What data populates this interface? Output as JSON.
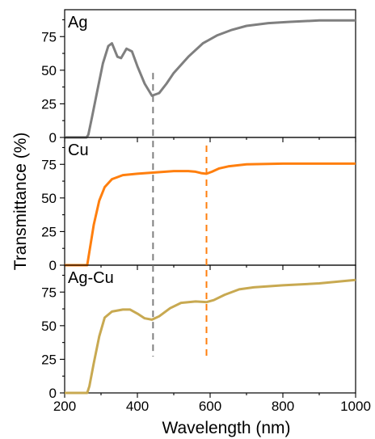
{
  "chart_data": {
    "type": "line",
    "xlabel": "Wavelength (nm)",
    "ylabel": "Transmittance (%)",
    "xlim": [
      200,
      1000
    ],
    "x_ticks": [
      "200",
      "400",
      "600",
      "800",
      "1000"
    ],
    "panels": [
      {
        "label": "Ag",
        "color": "#7f7f7f",
        "ylim": [
          0,
          95
        ],
        "y_ticks": [
          "0",
          "25",
          "50",
          "75"
        ],
        "x": [
          200,
          260,
          265,
          275,
          290,
          305,
          320,
          330,
          345,
          355,
          370,
          385,
          400,
          420,
          440,
          460,
          480,
          500,
          540,
          580,
          620,
          660,
          700,
          760,
          820,
          900,
          1000
        ],
        "y": [
          0,
          0,
          2,
          15,
          35,
          55,
          68,
          70,
          60,
          59,
          66,
          64,
          53,
          40,
          31,
          33,
          40,
          48,
          60,
          70,
          76,
          80,
          83,
          85,
          86,
          87,
          87
        ]
      },
      {
        "label": "Cu",
        "color": "#ff7f0e",
        "ylim": [
          0,
          95
        ],
        "y_ticks": [
          "0",
          "25",
          "50",
          "75"
        ],
        "x": [
          200,
          262,
          268,
          280,
          295,
          310,
          330,
          360,
          400,
          450,
          500,
          540,
          560,
          575,
          590,
          605,
          625,
          650,
          700,
          800,
          900,
          1000
        ],
        "y": [
          0,
          0,
          10,
          30,
          48,
          58,
          64,
          67,
          68,
          69,
          70,
          70,
          69.5,
          68.5,
          68,
          69.5,
          72,
          73.5,
          75,
          75.5,
          75.5,
          75.5
        ]
      },
      {
        "label": "Ag-Cu",
        "color": "#c8a951",
        "ylim": [
          0,
          95
        ],
        "y_ticks": [
          "0",
          "25",
          "50",
          "75"
        ],
        "x": [
          200,
          262,
          268,
          280,
          295,
          310,
          330,
          360,
          380,
          400,
          420,
          440,
          460,
          490,
          520,
          560,
          590,
          610,
          640,
          680,
          720,
          800,
          900,
          1000
        ],
        "y": [
          0,
          0,
          5,
          22,
          42,
          56,
          60.5,
          62,
          62,
          59,
          55.5,
          54.5,
          57,
          63,
          67,
          68,
          67.5,
          69,
          73,
          77,
          78.5,
          80,
          81.5,
          84
        ]
      }
    ],
    "markers": [
      {
        "x": 443,
        "color": "#7f7f7f",
        "from_panel": 0,
        "from_value": 48,
        "to_panel": 2,
        "to_value": 27
      },
      {
        "x": 590,
        "color": "#ff7f0e",
        "from_panel": 1,
        "from_value": 89,
        "to_panel": 2,
        "to_value": 25
      }
    ],
    "grid": false,
    "legend": "none"
  }
}
